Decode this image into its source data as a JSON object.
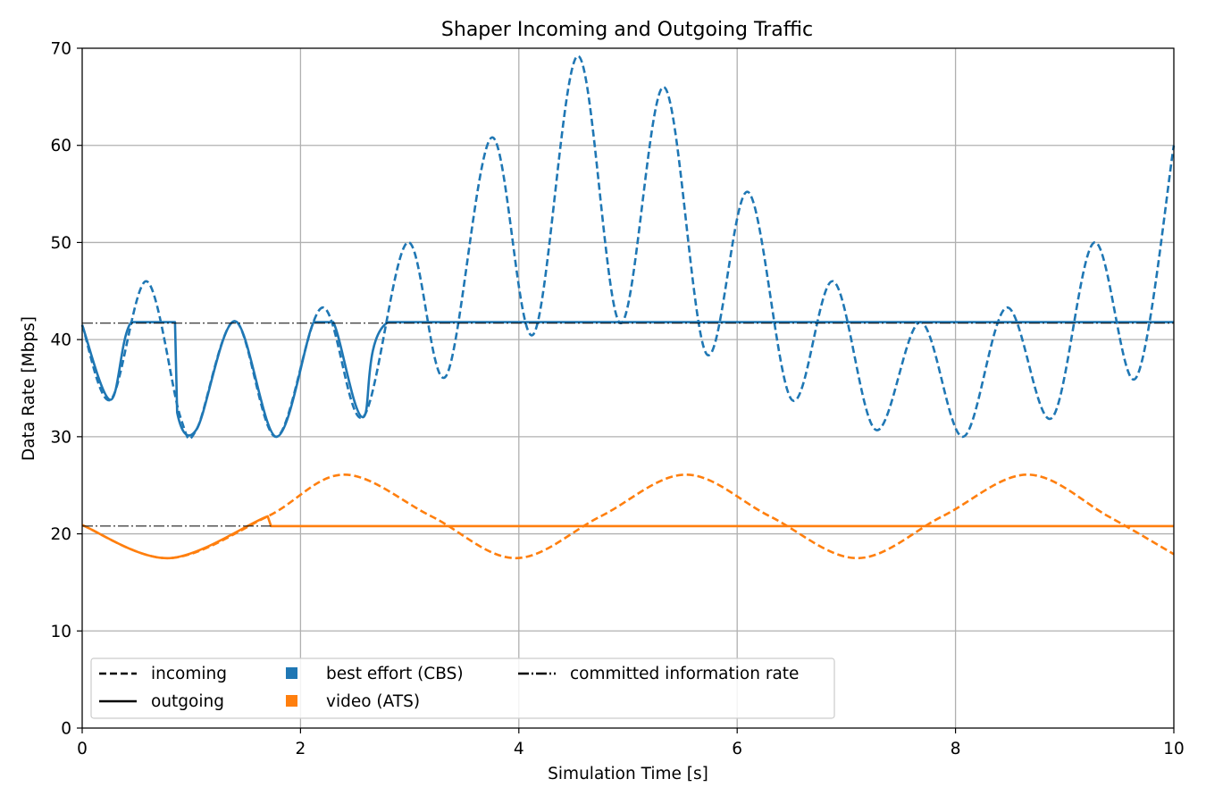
{
  "chart_data": {
    "type": "line",
    "title": "Shaper Incoming and Outgoing Traffic",
    "xlabel": "Simulation Time [s]",
    "ylabel": "Data Rate [Mbps]",
    "xlim": [
      0,
      10
    ],
    "ylim": [
      0,
      70
    ],
    "xticks": [
      "0",
      "2",
      "4",
      "6",
      "8",
      "10"
    ],
    "yticks": [
      "0",
      "10",
      "20",
      "30",
      "40",
      "50",
      "60",
      "70"
    ],
    "grid": true,
    "legend_position": "lower-left",
    "legend": {
      "incoming": "incoming",
      "outgoing": "outgoing",
      "best_effort": "best effort (CBS)",
      "video": "video (ATS)",
      "cir": "committed information rate"
    },
    "colors": {
      "best_effort": "#1f77b4",
      "video": "#ff7f0e",
      "cir": "#000000"
    },
    "series": [
      {
        "name": "best effort (CBS)",
        "style": "incoming",
        "color": "#1f77b4",
        "x": [
          0,
          0.26,
          0.59,
          0.9,
          1.05,
          1.4,
          1.78,
          2.2,
          2.57,
          2.98,
          3.33,
          3.75,
          4.13,
          4.54,
          4.93,
          5.33,
          5.72,
          6.1,
          6.5,
          6.88,
          7.27,
          7.68,
          8.07,
          8.47,
          8.88,
          9.27,
          9.65,
          10.0
        ],
        "y": [
          41.5,
          33.8,
          46.0,
          32.0,
          30.8,
          41.9,
          30.0,
          43.3,
          32.0,
          50.0,
          36.2,
          60.8,
          40.5,
          69.2,
          41.7,
          66.0,
          38.5,
          55.2,
          33.8,
          46.0,
          30.7,
          41.8,
          30.0,
          43.3,
          31.9,
          50.0,
          36.0,
          60.0
        ]
      },
      {
        "name": "best effort (CBS)",
        "style": "outgoing",
        "color": "#1f77b4",
        "x": [
          0,
          0.26,
          0.45,
          0.85,
          0.87,
          1.05,
          1.4,
          1.78,
          2.12,
          2.3,
          2.57,
          2.8,
          10.0
        ],
        "y": [
          41.5,
          33.8,
          41.8,
          41.8,
          32.5,
          30.8,
          41.9,
          30.0,
          41.8,
          41.8,
          32.0,
          41.8,
          41.8
        ]
      },
      {
        "name": "video (ATS)",
        "style": "incoming",
        "color": "#ff7f0e",
        "x": [
          0,
          0.8,
          1.7,
          2.4,
          3.2,
          3.97,
          4.75,
          5.53,
          6.3,
          7.1,
          7.88,
          8.66,
          9.4,
          10.0
        ],
        "y": [
          20.9,
          17.5,
          21.8,
          26.1,
          21.8,
          17.5,
          21.8,
          26.1,
          21.8,
          17.5,
          21.8,
          26.1,
          21.8,
          17.9
        ]
      },
      {
        "name": "video (ATS)",
        "style": "outgoing",
        "color": "#ff7f0e",
        "x": [
          0,
          0.8,
          1.7,
          1.73,
          10.0
        ],
        "y": [
          20.9,
          17.5,
          21.8,
          20.8,
          20.8
        ]
      },
      {
        "name": "committed information rate",
        "style": "cir",
        "color": "#000000",
        "x": [
          0,
          10.0
        ],
        "y": [
          41.7,
          41.7
        ]
      },
      {
        "name": "committed information rate",
        "style": "cir",
        "color": "#000000",
        "x": [
          0,
          1.73
        ],
        "y": [
          20.8,
          20.8
        ]
      }
    ]
  }
}
